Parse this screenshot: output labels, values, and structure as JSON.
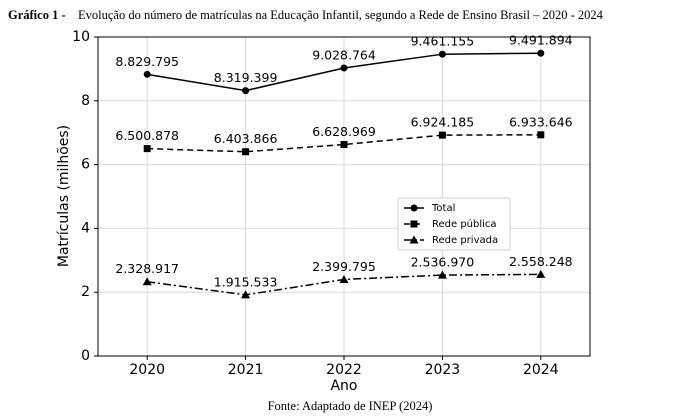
{
  "chart_data": {
    "type": "line",
    "title_label": "Gráfico 1 -",
    "title": "Evolução do número de matrículas na Educação Infantil, segundo a Rede de Ensino Brasil – 2020 - 2024",
    "source": "Fonte: Adaptado de INEP (2024)",
    "x_label": "Ano",
    "y_label": "Matrículas (milhões)",
    "categories": [
      "2020",
      "2021",
      "2022",
      "2023",
      "2024"
    ],
    "series": [
      {
        "name": "Total",
        "color": "#000000",
        "linestyle": "solid",
        "marker": "circle",
        "values": [
          8.829795,
          8.319399,
          9.028764,
          9.461155,
          9.491894
        ],
        "value_labels": [
          "8.829.795",
          "8.319.399",
          "9.028.764",
          "9.461.155",
          "9.491.894"
        ]
      },
      {
        "name": "Rede pública",
        "color": "#000000",
        "linestyle": "dashed",
        "marker": "square",
        "values": [
          6.500878,
          6.403866,
          6.628969,
          6.924185,
          6.933646
        ],
        "value_labels": [
          "6.500.878",
          "6.403.866",
          "6.628.969",
          "6.924.185",
          "6.933.646"
        ]
      },
      {
        "name": "Rede privada",
        "color": "#000000",
        "linestyle": "dashdot",
        "marker": "triangle",
        "values": [
          2.328917,
          1.915533,
          2.399795,
          2.53697,
          2.558248
        ],
        "value_labels": [
          "2.328.917",
          "1.915.533",
          "2.399.795",
          "2.536.970",
          "2.558.248"
        ]
      }
    ],
    "ylim": [
      0,
      10
    ],
    "yticks": [
      0,
      2,
      4,
      6,
      8,
      10
    ],
    "grid": true,
    "legend": "center right"
  }
}
